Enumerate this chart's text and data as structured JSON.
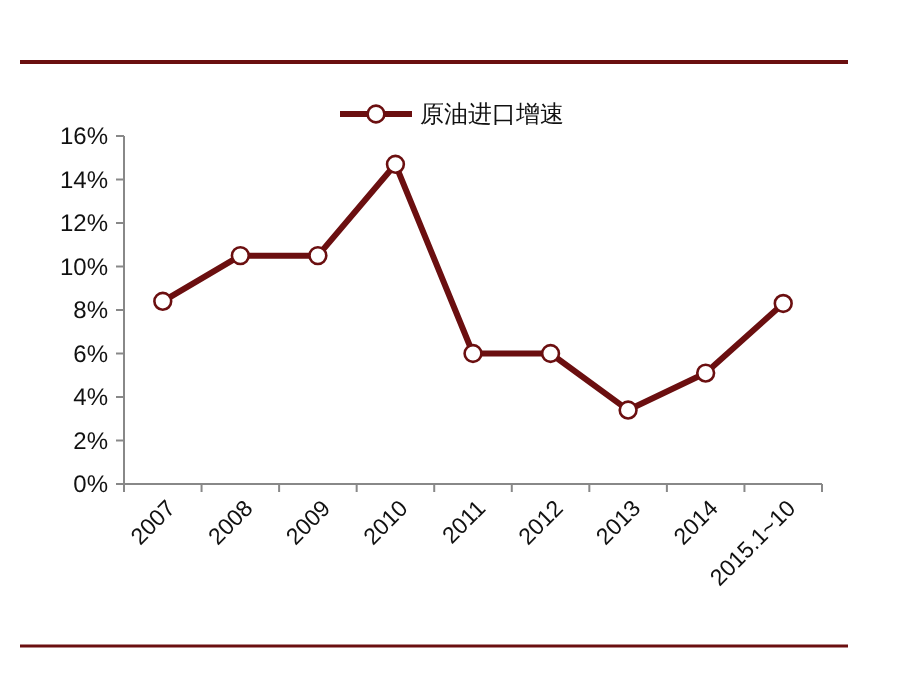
{
  "chart_data": {
    "type": "line",
    "categories": [
      "2007",
      "2008",
      "2009",
      "2010",
      "2011",
      "2012",
      "2013",
      "2014",
      "2015.1~10"
    ],
    "series": [
      {
        "name": "原油进口增速",
        "color": "#6b0f10",
        "values": [
          8.4,
          10.5,
          10.5,
          14.7,
          6.0,
          6.0,
          3.4,
          5.1,
          8.3
        ]
      }
    ],
    "ylim": [
      0,
      16
    ],
    "yticks": [
      {
        "value": 0,
        "label": "0%"
      },
      {
        "value": 2,
        "label": "2%"
      },
      {
        "value": 4,
        "label": "4%"
      },
      {
        "value": 6,
        "label": "6%"
      },
      {
        "value": 8,
        "label": "8%"
      },
      {
        "value": 10,
        "label": "10%"
      },
      {
        "value": 12,
        "label": "12%"
      },
      {
        "value": 14,
        "label": "14%"
      },
      {
        "value": 16,
        "label": "16%"
      }
    ],
    "marker": "circle",
    "legend": "top",
    "grid": false
  }
}
